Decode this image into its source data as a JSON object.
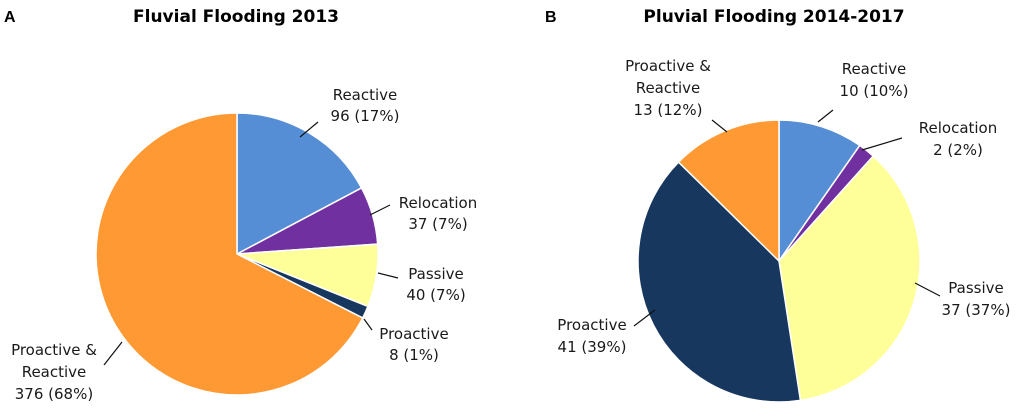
{
  "chart_data": [
    {
      "type": "pie",
      "panel": "A",
      "title": "Fluvial Flooding 2013",
      "slices": [
        {
          "key": "reactive",
          "label": "Reactive",
          "value_text": "96 (17%)",
          "value": 96,
          "percent": 17,
          "color": "#558ed5"
        },
        {
          "key": "relocation",
          "label": "Relocation",
          "value_text": "37 (7%)",
          "value": 37,
          "percent": 7,
          "color": "#7030a0"
        },
        {
          "key": "passive",
          "label": "Passive",
          "value_text": "40 (7%)",
          "value": 40,
          "percent": 7,
          "color": "#ffff99"
        },
        {
          "key": "proactive",
          "label": "Proactive",
          "value_text": "8 (1%)",
          "value": 8,
          "percent": 1,
          "color": "#17375e"
        },
        {
          "key": "proactive-reactive",
          "label_lines": [
            "Proactive &",
            "Reactive"
          ],
          "value_text": "376 (68%)",
          "value": 376,
          "percent": 68,
          "color": "#ff9933"
        }
      ]
    },
    {
      "type": "pie",
      "panel": "B",
      "title": "Pluvial Flooding 2014-2017",
      "slices": [
        {
          "key": "reactive",
          "label": "Reactive",
          "value_text": "10 (10%)",
          "value": 10,
          "percent": 10,
          "color": "#558ed5"
        },
        {
          "key": "relocation",
          "label": "Relocation",
          "value_text": "2 (2%)",
          "value": 2,
          "percent": 2,
          "color": "#7030a0"
        },
        {
          "key": "passive",
          "label": "Passive",
          "value_text": "37 (37%)",
          "value": 37,
          "percent": 37,
          "color": "#ffff99"
        },
        {
          "key": "proactive",
          "label": "Proactive",
          "value_text": "41 (39%)",
          "value": 41,
          "percent": 39,
          "color": "#17375e"
        },
        {
          "key": "proactive-reactive",
          "label_lines": [
            "Proactive &",
            "Reactive"
          ],
          "value_text": "13 (12%)",
          "value": 13,
          "percent": 12,
          "color": "#ff9933"
        }
      ]
    }
  ]
}
